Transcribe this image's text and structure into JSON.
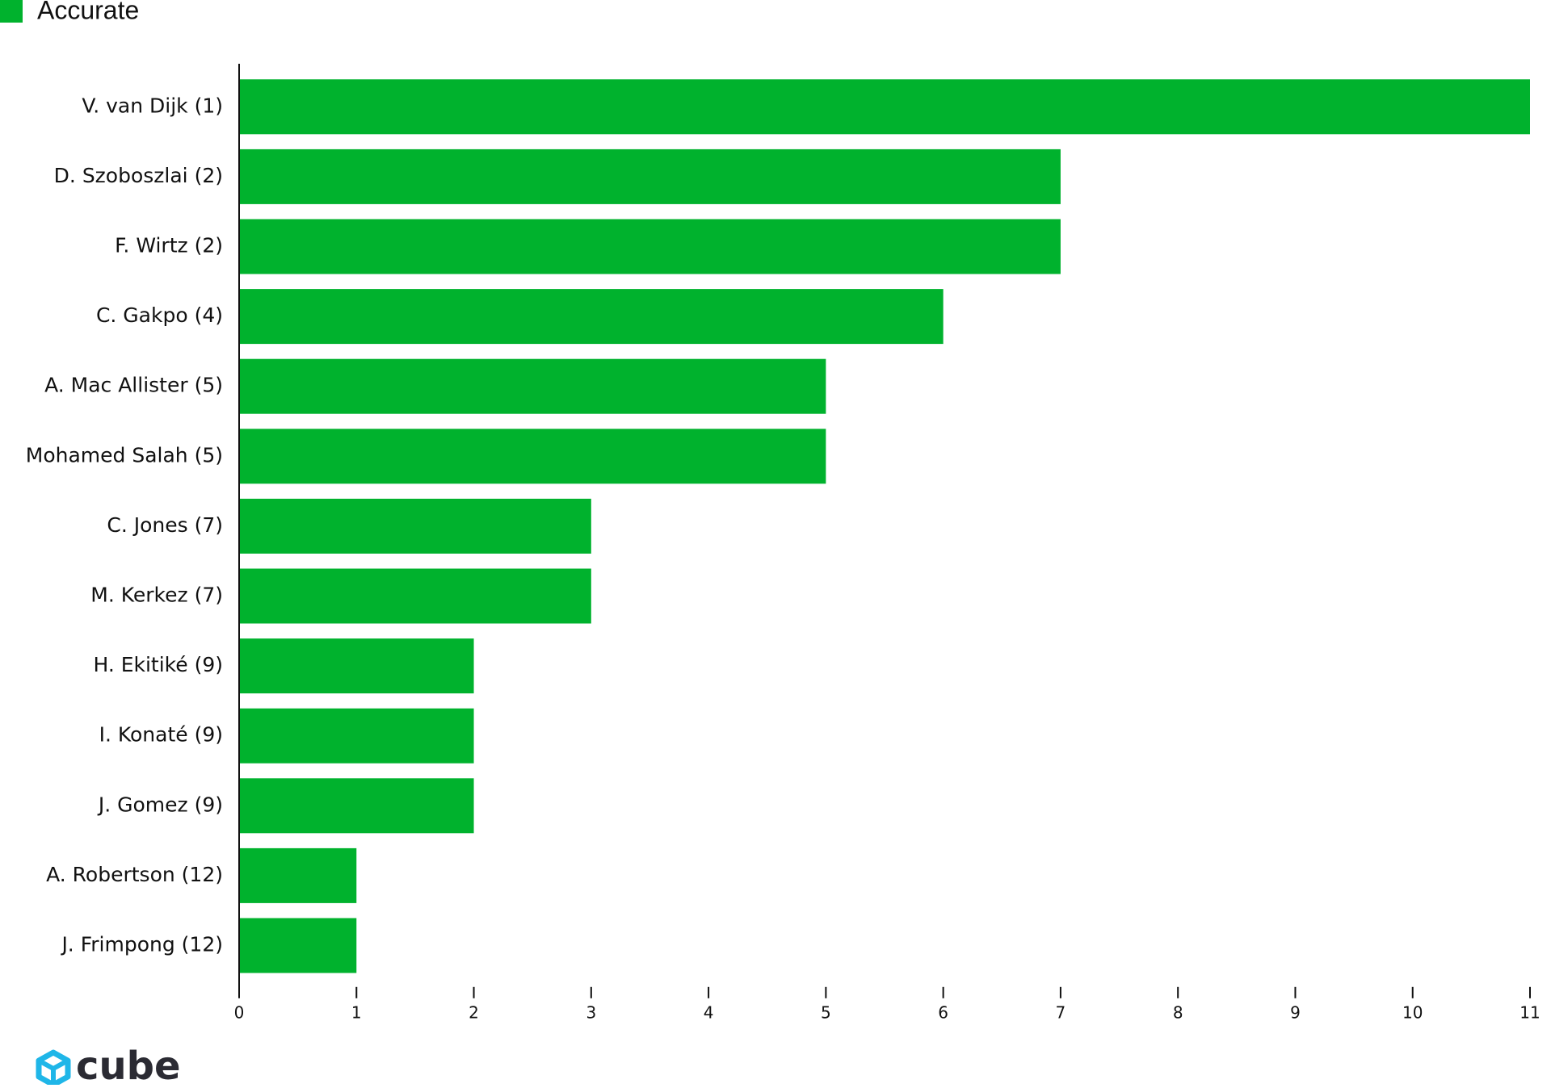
{
  "chart_data": {
    "type": "bar",
    "orientation": "horizontal",
    "categories": [
      "V. van Dijk (1)",
      "D. Szoboszlai (2)",
      "F. Wirtz (2)",
      "C. Gakpo (4)",
      "A. Mac Allister (5)",
      "Mohamed Salah (5)",
      "C. Jones (7)",
      "M. Kerkez (7)",
      "H. Ekitiké (9)",
      "I. Konaté (9)",
      "J. Gomez (9)",
      "A. Robertson (12)",
      "J. Frimpong (12)"
    ],
    "series": [
      {
        "name": "Accurate",
        "color": "#00b22d",
        "values": [
          11,
          7,
          7,
          6,
          5,
          5,
          3,
          3,
          2,
          2,
          2,
          1,
          1
        ]
      }
    ],
    "xlim": [
      0,
      11
    ],
    "xticks": [
      0,
      1,
      2,
      3,
      4,
      5,
      6,
      7,
      8,
      9,
      10,
      11
    ],
    "legend": "top-left",
    "grid": false
  },
  "logo": "cube"
}
